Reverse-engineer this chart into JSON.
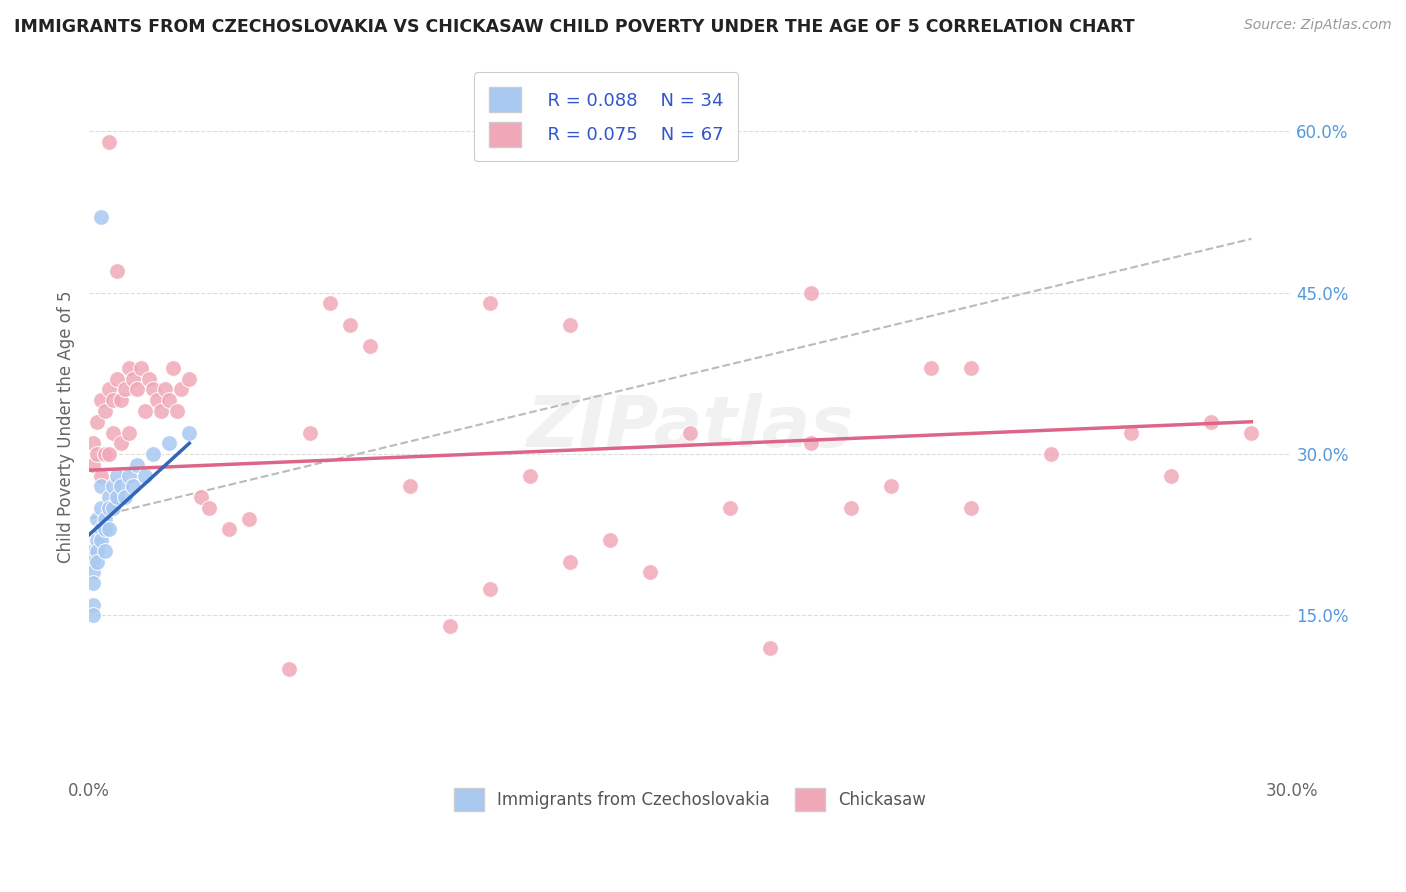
{
  "title": "IMMIGRANTS FROM CZECHOSLOVAKIA VS CHICKASAW CHILD POVERTY UNDER THE AGE OF 5 CORRELATION CHART",
  "source": "Source: ZipAtlas.com",
  "ylabel": "Child Poverty Under the Age of 5",
  "xlim": [
    0.0,
    0.3
  ],
  "ylim": [
    0.0,
    0.65
  ],
  "ytick_right": [
    0.15,
    0.3,
    0.45,
    0.6
  ],
  "ytick_right_labels": [
    "15.0%",
    "30.0%",
    "45.0%",
    "60.0%"
  ],
  "color_blue": "#a8c8f0",
  "color_pink": "#f0a8b8",
  "color_blue_line": "#3366bb",
  "color_pink_line": "#dd6688",
  "color_dashed": "#bbbbbb",
  "color_legend_text": "#3355cc",
  "color_right_tick": "#5599dd",
  "background": "#ffffff",
  "blue_x": [
    0.001,
    0.001,
    0.001,
    0.001,
    0.001,
    0.001,
    0.002,
    0.002,
    0.002,
    0.002,
    0.003,
    0.003,
    0.003,
    0.003,
    0.004,
    0.004,
    0.004,
    0.005,
    0.005,
    0.005,
    0.006,
    0.006,
    0.007,
    0.007,
    0.008,
    0.009,
    0.01,
    0.011,
    0.012,
    0.014,
    0.016,
    0.02,
    0.025,
    0.003
  ],
  "blue_y": [
    0.21,
    0.2,
    0.19,
    0.18,
    0.16,
    0.15,
    0.24,
    0.22,
    0.21,
    0.2,
    0.27,
    0.25,
    0.23,
    0.22,
    0.24,
    0.23,
    0.21,
    0.26,
    0.25,
    0.23,
    0.27,
    0.25,
    0.28,
    0.26,
    0.27,
    0.26,
    0.28,
    0.27,
    0.29,
    0.28,
    0.3,
    0.31,
    0.32,
    0.52
  ],
  "pink_x": [
    0.001,
    0.001,
    0.002,
    0.002,
    0.003,
    0.003,
    0.004,
    0.004,
    0.005,
    0.005,
    0.006,
    0.006,
    0.007,
    0.008,
    0.008,
    0.009,
    0.01,
    0.01,
    0.011,
    0.012,
    0.013,
    0.014,
    0.015,
    0.016,
    0.017,
    0.018,
    0.019,
    0.02,
    0.021,
    0.022,
    0.023,
    0.025,
    0.028,
    0.03,
    0.035,
    0.04,
    0.05,
    0.055,
    0.06,
    0.065,
    0.07,
    0.08,
    0.09,
    0.1,
    0.11,
    0.12,
    0.13,
    0.14,
    0.15,
    0.16,
    0.17,
    0.18,
    0.19,
    0.2,
    0.21,
    0.22,
    0.24,
    0.26,
    0.27,
    0.28,
    0.29,
    0.005,
    0.007,
    0.12,
    0.18,
    0.22,
    0.1
  ],
  "pink_y": [
    0.31,
    0.29,
    0.33,
    0.3,
    0.35,
    0.28,
    0.34,
    0.3,
    0.36,
    0.3,
    0.35,
    0.32,
    0.37,
    0.35,
    0.31,
    0.36,
    0.38,
    0.32,
    0.37,
    0.36,
    0.38,
    0.34,
    0.37,
    0.36,
    0.35,
    0.34,
    0.36,
    0.35,
    0.38,
    0.34,
    0.36,
    0.37,
    0.26,
    0.25,
    0.23,
    0.24,
    0.1,
    0.32,
    0.44,
    0.42,
    0.4,
    0.27,
    0.14,
    0.44,
    0.28,
    0.2,
    0.22,
    0.19,
    0.32,
    0.25,
    0.12,
    0.31,
    0.25,
    0.27,
    0.38,
    0.25,
    0.3,
    0.32,
    0.28,
    0.33,
    0.32,
    0.59,
    0.47,
    0.42,
    0.45,
    0.38,
    0.175
  ],
  "blue_line_x": [
    0.0,
    0.025
  ],
  "blue_line_y": [
    0.225,
    0.31
  ],
  "pink_line_x": [
    0.0,
    0.29
  ],
  "pink_line_y": [
    0.285,
    0.33
  ],
  "dashed_line_x": [
    0.0,
    0.29
  ],
  "dashed_line_y": [
    0.24,
    0.5
  ]
}
